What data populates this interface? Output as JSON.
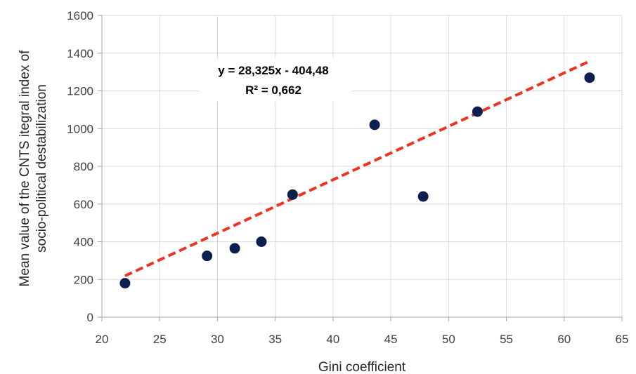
{
  "chart_data": {
    "type": "scatter",
    "xlabel": "Gini coefficient",
    "ylabel": [
      "Mean value of the CNTS itegral index of",
      "socio-political destabilization"
    ],
    "xlim": [
      20,
      65
    ],
    "ylim": [
      0,
      1600
    ],
    "xticks": [
      20,
      25,
      30,
      35,
      40,
      45,
      50,
      55,
      60,
      65
    ],
    "yticks": [
      0,
      200,
      400,
      600,
      800,
      1000,
      1200,
      1400,
      1600
    ],
    "grid": true,
    "series": [
      {
        "points": [
          {
            "x": 22.0,
            "y": 180
          },
          {
            "x": 29.1,
            "y": 325
          },
          {
            "x": 31.5,
            "y": 365
          },
          {
            "x": 33.8,
            "y": 400
          },
          {
            "x": 36.5,
            "y": 650
          },
          {
            "x": 43.6,
            "y": 1020
          },
          {
            "x": 47.8,
            "y": 640
          },
          {
            "x": 52.5,
            "y": 1090
          },
          {
            "x": 62.2,
            "y": 1270
          }
        ]
      }
    ],
    "trendline": {
      "slope": 28.325,
      "intercept": -404.48,
      "x_range": [
        22,
        62.2
      ],
      "equation_label": "y = 28,325x - 404,48",
      "r2_label": "R² = 0,662"
    },
    "colors": {
      "points": "#0d1f4f",
      "trendline": "#ee3322",
      "grid": "#d9d9d9",
      "axis": "#a6a6a6"
    }
  }
}
